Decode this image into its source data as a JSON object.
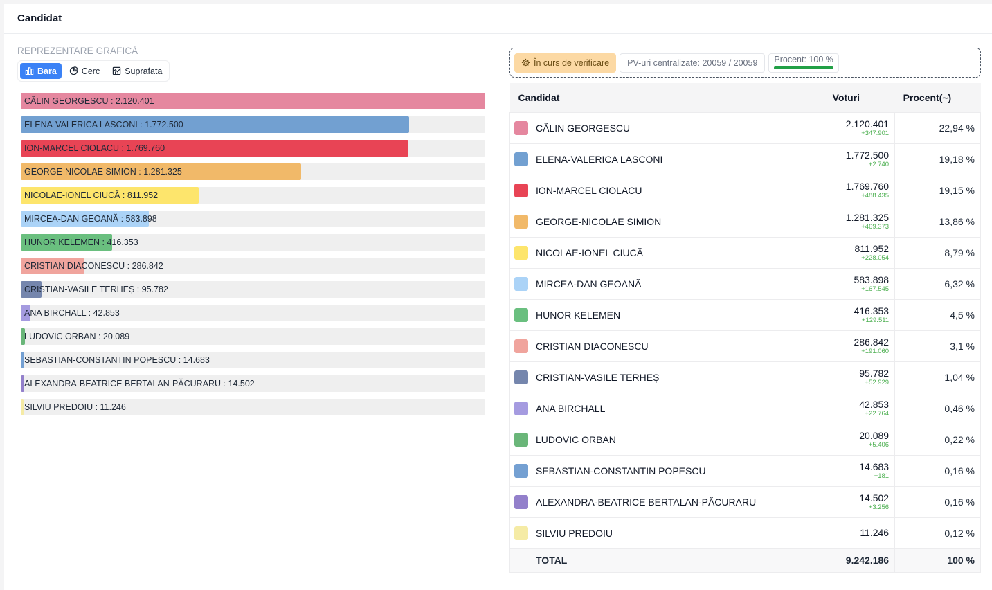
{
  "page": {
    "title": "Candidat"
  },
  "chart_section": {
    "title": "REPREZENTARE GRAFICĂ",
    "tabs": [
      {
        "label": "Bara",
        "icon": "bar-chart-icon",
        "active": true
      },
      {
        "label": "Cerc",
        "icon": "pie-chart-icon",
        "active": false
      },
      {
        "label": "Suprafata",
        "icon": "area-chart-icon",
        "active": false
      }
    ]
  },
  "status": {
    "badge": "În curs de verificare",
    "pv_label": "PV-uri centralizate: 20059 / 20059",
    "procent_label": "Procent: 100 %",
    "procent_value": 100
  },
  "table": {
    "headers": {
      "candidate": "Candidat",
      "votes": "Voturi",
      "percent": "Procent(~)"
    },
    "total_label": "TOTAL",
    "total_votes": "9.242.186",
    "total_percent": "100 %"
  },
  "chart_data": {
    "type": "bar",
    "orientation": "horizontal",
    "categories": [
      "CĂLIN GEORGESCU",
      "ELENA-VALERICA LASCONI",
      "ION-MARCEL CIOLACU",
      "GEORGE-NICOLAE SIMION",
      "NICOLAE-IONEL CIUCĂ",
      "MIRCEA-DAN GEOANĂ",
      "HUNOR KELEMEN",
      "CRISTIAN DIACONESCU",
      "CRISTIAN-VASILE TERHEȘ",
      "ANA BIRCHALL",
      "LUDOVIC ORBAN",
      "SEBASTIAN-CONSTANTIN POPESCU",
      "ALEXANDRA-BEATRICE BERTALAN-PĂCURARU",
      "SILVIU PREDOIU"
    ],
    "values": [
      2120401,
      1772500,
      1769760,
      1281325,
      811952,
      583898,
      416353,
      286842,
      95782,
      42853,
      20089,
      14683,
      14502,
      11246
    ]
  },
  "candidates": [
    {
      "name": "CĂLIN GEORGESCU",
      "votes": "2.120.401",
      "votes_n": 2120401,
      "delta": "+347.901",
      "percent": "22,94 %",
      "color": "#e5879f"
    },
    {
      "name": "ELENA-VALERICA LASCONI",
      "votes": "1.772.500",
      "votes_n": 1772500,
      "delta": "+2.740",
      "percent": "19,18 %",
      "color": "#72a0d1"
    },
    {
      "name": "ION-MARCEL CIOLACU",
      "votes": "1.769.760",
      "votes_n": 1769760,
      "delta": "+488.435",
      "percent": "19,15 %",
      "color": "#e84455"
    },
    {
      "name": "GEORGE-NICOLAE SIMION",
      "votes": "1.281.325",
      "votes_n": 1281325,
      "delta": "+469.373",
      "percent": "13,86 %",
      "color": "#f1b969"
    },
    {
      "name": "NICOLAE-IONEL CIUCĂ",
      "votes": "811.952",
      "votes_n": 811952,
      "delta": "+228.054",
      "percent": "8,79 %",
      "color": "#fde56c"
    },
    {
      "name": "MIRCEA-DAN GEOANĂ",
      "votes": "583.898",
      "votes_n": 583898,
      "delta": "+167.545",
      "percent": "6,32 %",
      "color": "#abd3f7"
    },
    {
      "name": "HUNOR KELEMEN",
      "votes": "416.353",
      "votes_n": 416353,
      "delta": "+129.511",
      "percent": "4,5 %",
      "color": "#6abf7f"
    },
    {
      "name": "CRISTIAN DIACONESCU",
      "votes": "286.842",
      "votes_n": 286842,
      "delta": "+191.060",
      "percent": "3,1 %",
      "color": "#f0a49d"
    },
    {
      "name": "CRISTIAN-VASILE TERHEȘ",
      "votes": "95.782",
      "votes_n": 95782,
      "delta": "+52.929",
      "percent": "1,04 %",
      "color": "#7586ad"
    },
    {
      "name": "ANA BIRCHALL",
      "votes": "42.853",
      "votes_n": 42853,
      "delta": "+22.764",
      "percent": "0,46 %",
      "color": "#a59be0"
    },
    {
      "name": "LUDOVIC ORBAN",
      "votes": "20.089",
      "votes_n": 20089,
      "delta": "+5.406",
      "percent": "0,22 %",
      "color": "#6ab679"
    },
    {
      "name": "SEBASTIAN-CONSTANTIN POPESCU",
      "votes": "14.683",
      "votes_n": 14683,
      "delta": "+181",
      "percent": "0,16 %",
      "color": "#74a0d2"
    },
    {
      "name": "ALEXANDRA-BEATRICE BERTALAN-PĂCURARU",
      "votes": "14.502",
      "votes_n": 14502,
      "delta": "+3.256",
      "percent": "0,16 %",
      "color": "#9380cb"
    },
    {
      "name": "SILVIU PREDOIU",
      "votes": "11.246",
      "votes_n": 11246,
      "delta": "",
      "percent": "0,12 %",
      "color": "#f5eba5"
    }
  ]
}
